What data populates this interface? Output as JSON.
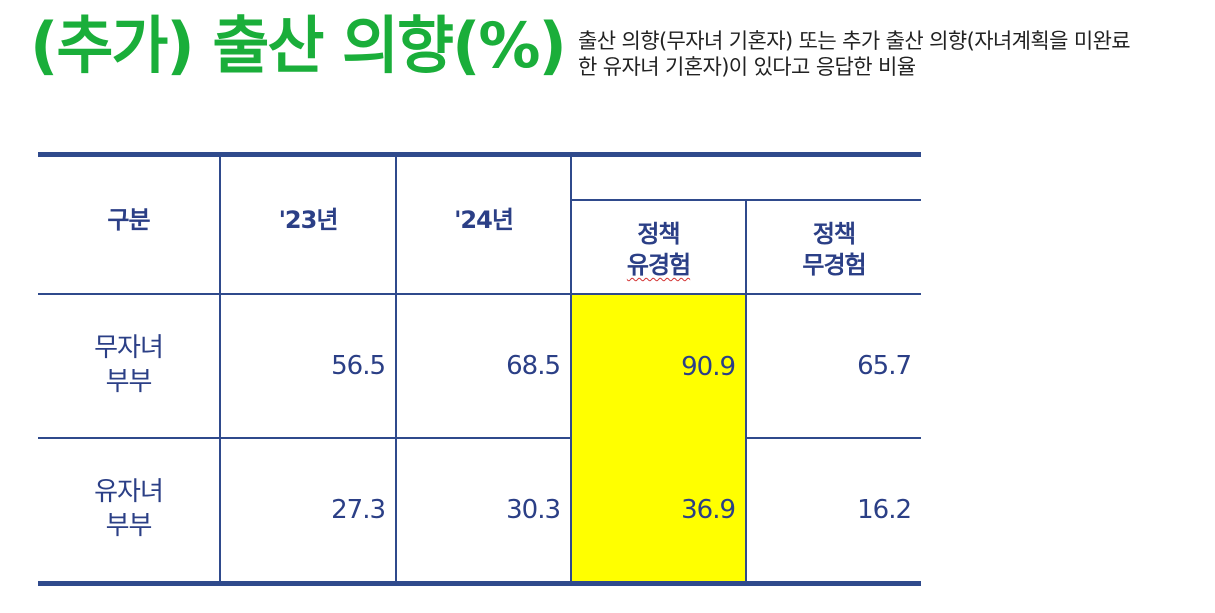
{
  "title": "(추가) 출산 의향(%)",
  "subtitle": {
    "line1": "출산 의향(무자녀 기혼자) 또는 추가 출산 의향(자녀계획을 미완료",
    "line2": "한 유자녀 기혼자)이 있다고 응답한 비율"
  },
  "table": {
    "headers": {
      "category": "구분",
      "y2023": "'23년",
      "y2024": "'24년",
      "policy_exp_line1": "정책",
      "policy_exp_line2": "유경험",
      "policy_noexp_line1": "정책",
      "policy_noexp_line2": "무경험"
    },
    "rows": [
      {
        "label_line1": "무자녀",
        "label_line2": "부부",
        "y2023": "56.5",
        "y2024": "68.5",
        "policy_exp": "90.9",
        "policy_noexp": "65.7"
      },
      {
        "label_line1": "유자녀",
        "label_line2": "부부",
        "y2023": "27.3",
        "y2024": "30.3",
        "policy_exp": "36.9",
        "policy_noexp": "16.2"
      }
    ]
  },
  "colors": {
    "title": "#1aae3a",
    "table_text": "#2b3f86",
    "rule": "#2f4a8c",
    "highlight": "#ffff00"
  }
}
